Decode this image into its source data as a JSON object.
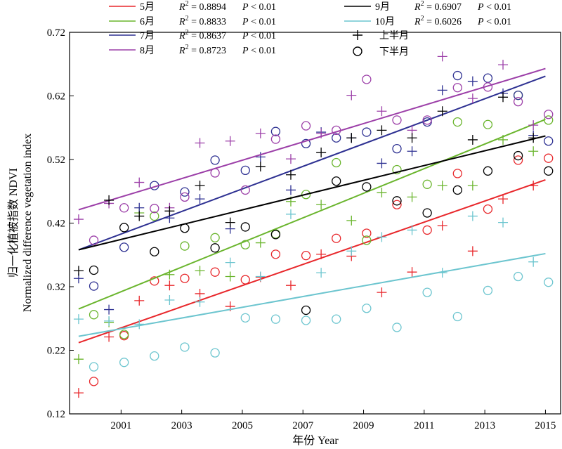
{
  "chart_data": {
    "type": "scatter",
    "xlabel": "年份 Year",
    "ylabel_cn": "归一化植被指数 NDVI",
    "ylabel_en": "Normalized difference vegetation index",
    "xlim": [
      1999.3,
      2015.5
    ],
    "ylim": [
      0.12,
      0.72
    ],
    "x_ticks": [
      2001,
      2003,
      2005,
      2007,
      2009,
      2011,
      2013,
      2015
    ],
    "y_ticks": [
      0.12,
      0.22,
      0.32,
      0.42,
      0.52,
      0.62,
      0.72
    ],
    "y_tick_labels": [
      "0.12",
      "0.22",
      "0.32",
      "0.42",
      "0.52",
      "0.62",
      "0.72"
    ],
    "grid": false,
    "legend_placement": "top",
    "marker_legend": [
      {
        "name": "上半月",
        "marker": "plus"
      },
      {
        "name": "下半月",
        "marker": "circle"
      }
    ],
    "series": [
      {
        "name": "5月",
        "r2": "0.8894",
        "p": "0.01",
        "color": "#e8272b",
        "fit": [
          [
            1999.6,
            0.232
          ],
          [
            2015.0,
            0.488
          ]
        ],
        "first_half": [
          [
            1999.6,
            0.153
          ],
          [
            2000.6,
            0.241
          ],
          [
            2001.6,
            0.298
          ],
          [
            2002.6,
            0.322
          ],
          [
            2003.6,
            0.309
          ],
          [
            2004.6,
            0.289
          ],
          [
            2005.6,
            0.335
          ],
          [
            2006.6,
            0.322
          ],
          [
            2007.6,
            0.371
          ],
          [
            2008.6,
            0.368
          ],
          [
            2009.6,
            0.311
          ],
          [
            2010.6,
            0.343
          ],
          [
            2011.6,
            0.416
          ],
          [
            2012.6,
            0.376
          ],
          [
            2013.6,
            0.458
          ],
          [
            2014.6,
            0.479
          ]
        ],
        "second_half": [
          [
            2000.1,
            0.171
          ],
          [
            2001.1,
            0.243
          ],
          [
            2002.1,
            0.329
          ],
          [
            2003.1,
            0.333
          ],
          [
            2004.1,
            0.343
          ],
          [
            2005.1,
            0.331
          ],
          [
            2006.1,
            0.371
          ],
          [
            2007.1,
            0.369
          ],
          [
            2008.1,
            0.396
          ],
          [
            2009.1,
            0.404
          ],
          [
            2010.1,
            0.449
          ],
          [
            2011.1,
            0.409
          ],
          [
            2012.1,
            0.498
          ],
          [
            2013.1,
            0.442
          ],
          [
            2014.1,
            0.519
          ],
          [
            2015.1,
            0.522
          ]
        ]
      },
      {
        "name": "6月",
        "r2": "0.8833",
        "p": "0.01",
        "color": "#6ab52d",
        "fit": [
          [
            1999.6,
            0.285
          ],
          [
            2015.0,
            0.583
          ]
        ],
        "first_half": [
          [
            1999.6,
            0.206
          ],
          [
            2000.6,
            0.264
          ],
          [
            2001.6,
            0.436
          ],
          [
            2002.6,
            0.339
          ],
          [
            2003.6,
            0.345
          ],
          [
            2004.6,
            0.336
          ],
          [
            2005.6,
            0.389
          ],
          [
            2006.6,
            0.454
          ],
          [
            2007.6,
            0.449
          ],
          [
            2008.6,
            0.424
          ],
          [
            2009.6,
            0.468
          ],
          [
            2010.6,
            0.461
          ],
          [
            2011.6,
            0.479
          ],
          [
            2012.6,
            0.479
          ],
          [
            2013.6,
            0.551
          ],
          [
            2014.6,
            0.533
          ]
        ],
        "second_half": [
          [
            2000.1,
            0.276
          ],
          [
            2001.1,
            0.245
          ],
          [
            2002.1,
            0.431
          ],
          [
            2003.1,
            0.384
          ],
          [
            2004.1,
            0.397
          ],
          [
            2005.1,
            0.386
          ],
          [
            2006.1,
            0.403
          ],
          [
            2007.1,
            0.465
          ],
          [
            2008.1,
            0.515
          ],
          [
            2009.1,
            0.393
          ],
          [
            2010.1,
            0.504
          ],
          [
            2011.1,
            0.481
          ],
          [
            2012.1,
            0.579
          ],
          [
            2013.1,
            0.575
          ],
          [
            2014.1,
            0.621
          ],
          [
            2015.1,
            0.582
          ]
        ]
      },
      {
        "name": "7月",
        "r2": "0.8637",
        "p": "0.01",
        "color": "#2e3192",
        "fit": [
          [
            1999.6,
            0.378
          ],
          [
            2015.0,
            0.651
          ]
        ],
        "first_half": [
          [
            1999.6,
            0.333
          ],
          [
            2000.6,
            0.284
          ],
          [
            2001.6,
            0.444
          ],
          [
            2002.6,
            0.428
          ],
          [
            2003.6,
            0.458
          ],
          [
            2004.6,
            0.411
          ],
          [
            2005.6,
            0.524
          ],
          [
            2006.6,
            0.472
          ],
          [
            2007.6,
            0.563
          ],
          [
            2008.6,
            0.554
          ],
          [
            2009.6,
            0.514
          ],
          [
            2010.6,
            0.533
          ],
          [
            2011.6,
            0.629
          ],
          [
            2012.6,
            0.643
          ],
          [
            2013.6,
            0.624
          ],
          [
            2014.6,
            0.558
          ]
        ],
        "second_half": [
          [
            2000.1,
            0.321
          ],
          [
            2001.1,
            0.382
          ],
          [
            2002.1,
            0.479
          ],
          [
            2003.1,
            0.469
          ],
          [
            2004.1,
            0.519
          ],
          [
            2005.1,
            0.503
          ],
          [
            2006.1,
            0.564
          ],
          [
            2007.1,
            0.545
          ],
          [
            2008.1,
            0.554
          ],
          [
            2009.1,
            0.563
          ],
          [
            2010.1,
            0.537
          ],
          [
            2011.1,
            0.579
          ],
          [
            2012.1,
            0.652
          ],
          [
            2013.1,
            0.648
          ],
          [
            2014.1,
            0.621
          ],
          [
            2015.1,
            0.549
          ]
        ]
      },
      {
        "name": "8月",
        "r2": "0.8723",
        "p": "0.01",
        "color": "#9c3fa8",
        "fit": [
          [
            1999.6,
            0.441
          ],
          [
            2015.0,
            0.663
          ]
        ],
        "first_half": [
          [
            1999.6,
            0.426
          ],
          [
            2000.6,
            0.451
          ],
          [
            2001.6,
            0.484
          ],
          [
            2002.6,
            0.444
          ],
          [
            2003.6,
            0.546
          ],
          [
            2004.6,
            0.549
          ],
          [
            2005.6,
            0.561
          ],
          [
            2006.6,
            0.521
          ],
          [
            2007.6,
            0.561
          ],
          [
            2008.6,
            0.621
          ],
          [
            2009.6,
            0.596
          ],
          [
            2010.6,
            0.566
          ],
          [
            2011.6,
            0.682
          ],
          [
            2012.6,
            0.616
          ],
          [
            2013.6,
            0.669
          ],
          [
            2014.6,
            0.574
          ]
        ],
        "second_half": [
          [
            2000.1,
            0.393
          ],
          [
            2001.1,
            0.444
          ],
          [
            2002.1,
            0.443
          ],
          [
            2003.1,
            0.461
          ],
          [
            2004.1,
            0.499
          ],
          [
            2005.1,
            0.472
          ],
          [
            2006.1,
            0.552
          ],
          [
            2007.1,
            0.573
          ],
          [
            2008.1,
            0.566
          ],
          [
            2009.1,
            0.646
          ],
          [
            2010.1,
            0.582
          ],
          [
            2011.1,
            0.582
          ],
          [
            2012.1,
            0.633
          ],
          [
            2013.1,
            0.634
          ],
          [
            2014.1,
            0.611
          ],
          [
            2015.1,
            0.591
          ]
        ]
      },
      {
        "name": "9月",
        "r2": "0.6907",
        "p": "0.01",
        "color": "#000000",
        "fit": [
          [
            1999.6,
            0.378
          ],
          [
            2015.0,
            0.557
          ]
        ],
        "first_half": [
          [
            1999.6,
            0.345
          ],
          [
            2000.6,
            0.456
          ],
          [
            2001.6,
            0.431
          ],
          [
            2002.6,
            0.439
          ],
          [
            2003.6,
            0.479
          ],
          [
            2004.6,
            0.421
          ],
          [
            2005.6,
            0.509
          ],
          [
            2006.6,
            0.496
          ],
          [
            2007.6,
            0.531
          ],
          [
            2008.6,
            0.554
          ],
          [
            2009.6,
            0.566
          ],
          [
            2010.6,
            0.554
          ],
          [
            2011.6,
            0.596
          ],
          [
            2012.6,
            0.551
          ],
          [
            2013.6,
            0.618
          ],
          [
            2014.6,
            0.554
          ]
        ],
        "second_half": [
          [
            2000.1,
            0.346
          ],
          [
            2001.1,
            0.413
          ],
          [
            2002.1,
            0.375
          ],
          [
            2003.1,
            0.412
          ],
          [
            2004.1,
            0.381
          ],
          [
            2005.1,
            0.414
          ],
          [
            2006.1,
            0.402
          ],
          [
            2007.1,
            0.283
          ],
          [
            2008.1,
            0.486
          ],
          [
            2009.1,
            0.477
          ],
          [
            2010.1,
            0.455
          ],
          [
            2011.1,
            0.436
          ],
          [
            2012.1,
            0.472
          ],
          [
            2013.1,
            0.502
          ],
          [
            2014.1,
            0.526
          ],
          [
            2015.1,
            0.502
          ]
        ]
      },
      {
        "name": "10月",
        "r2": "0.6026",
        "p": "0.01",
        "color": "#6cc5cf",
        "fit": [
          [
            1999.6,
            0.242
          ],
          [
            2015.0,
            0.372
          ]
        ],
        "first_half": [
          [
            1999.6,
            0.269
          ],
          [
            2000.6,
            0.266
          ],
          [
            2001.6,
            0.261
          ],
          [
            2002.6,
            0.299
          ],
          [
            2003.6,
            0.296
          ],
          [
            2004.6,
            0.358
          ],
          [
            2005.6,
            0.336
          ],
          [
            2006.6,
            0.434
          ],
          [
            2007.6,
            0.342
          ],
          [
            2008.6,
            0.376
          ],
          [
            2009.6,
            0.398
          ],
          [
            2010.6,
            0.409
          ],
          [
            2011.6,
            0.342
          ],
          [
            2012.6,
            0.431
          ],
          [
            2013.6,
            0.421
          ],
          [
            2014.6,
            0.359
          ]
        ],
        "second_half": [
          [
            2000.1,
            0.194
          ],
          [
            2001.1,
            0.201
          ],
          [
            2002.1,
            0.211
          ],
          [
            2003.1,
            0.225
          ],
          [
            2004.1,
            0.216
          ],
          [
            2005.1,
            0.271
          ],
          [
            2006.1,
            0.269
          ],
          [
            2007.1,
            0.267
          ],
          [
            2008.1,
            0.269
          ],
          [
            2009.1,
            0.286
          ],
          [
            2010.1,
            0.256
          ],
          [
            2011.1,
            0.311
          ],
          [
            2012.1,
            0.273
          ],
          [
            2013.1,
            0.314
          ],
          [
            2014.1,
            0.336
          ],
          [
            2015.1,
            0.327
          ]
        ]
      }
    ]
  }
}
